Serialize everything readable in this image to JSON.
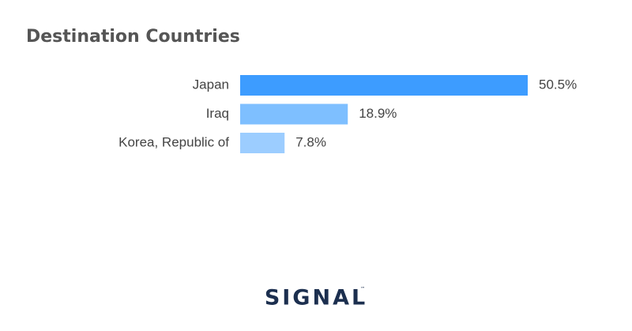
{
  "chart_data": {
    "type": "bar",
    "orientation": "horizontal",
    "title": "Destination Countries",
    "categories": [
      "Japan",
      "Iraq",
      "Korea, Republic of"
    ],
    "values": [
      50.5,
      18.9,
      7.8
    ],
    "value_labels": [
      "50.5%",
      "18.9%",
      "7.8%"
    ],
    "colors": [
      "#3d9cff",
      "#7ebfff",
      "#9ccdff"
    ]
  },
  "footer": {
    "logo": "SIGNAL",
    "trademark": "™"
  }
}
